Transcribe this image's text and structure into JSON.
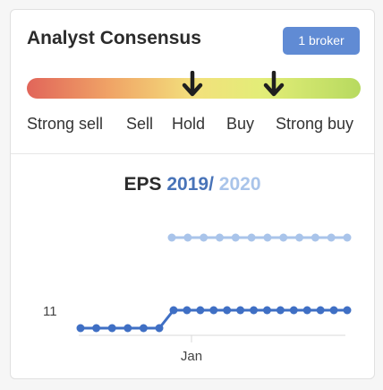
{
  "consensus": {
    "title": "Analyst Consensus",
    "broker_badge": "1 broker",
    "scale": [
      "Strong sell",
      "Sell",
      "Hold",
      "Buy",
      "Strong buy"
    ],
    "markers": [
      "arrow-down-icon",
      "arrow-down-icon"
    ]
  },
  "eps": {
    "label": "EPS",
    "year_primary": "2019",
    "separator": "/",
    "year_secondary": "2020",
    "colors": {
      "primary": "#3f6fc4",
      "secondary": "#a9c4ea"
    }
  },
  "chart_data": {
    "type": "line",
    "y_tick_labels": [
      "11"
    ],
    "x_tick_labels": [
      "Jan"
    ],
    "series": [
      {
        "values": [
          11,
          11,
          11,
          11,
          11,
          11,
          11,
          11,
          11,
          11,
          11,
          11,
          11,
          11,
          11,
          11,
          11,
          11,
          11,
          11
        ]
      },
      {
        "values": [
          null,
          null,
          null,
          null,
          null,
          null,
          null,
          null,
          12,
          12,
          12,
          12,
          12,
          12,
          12,
          12,
          12,
          12,
          12,
          12
        ]
      }
    ]
  }
}
